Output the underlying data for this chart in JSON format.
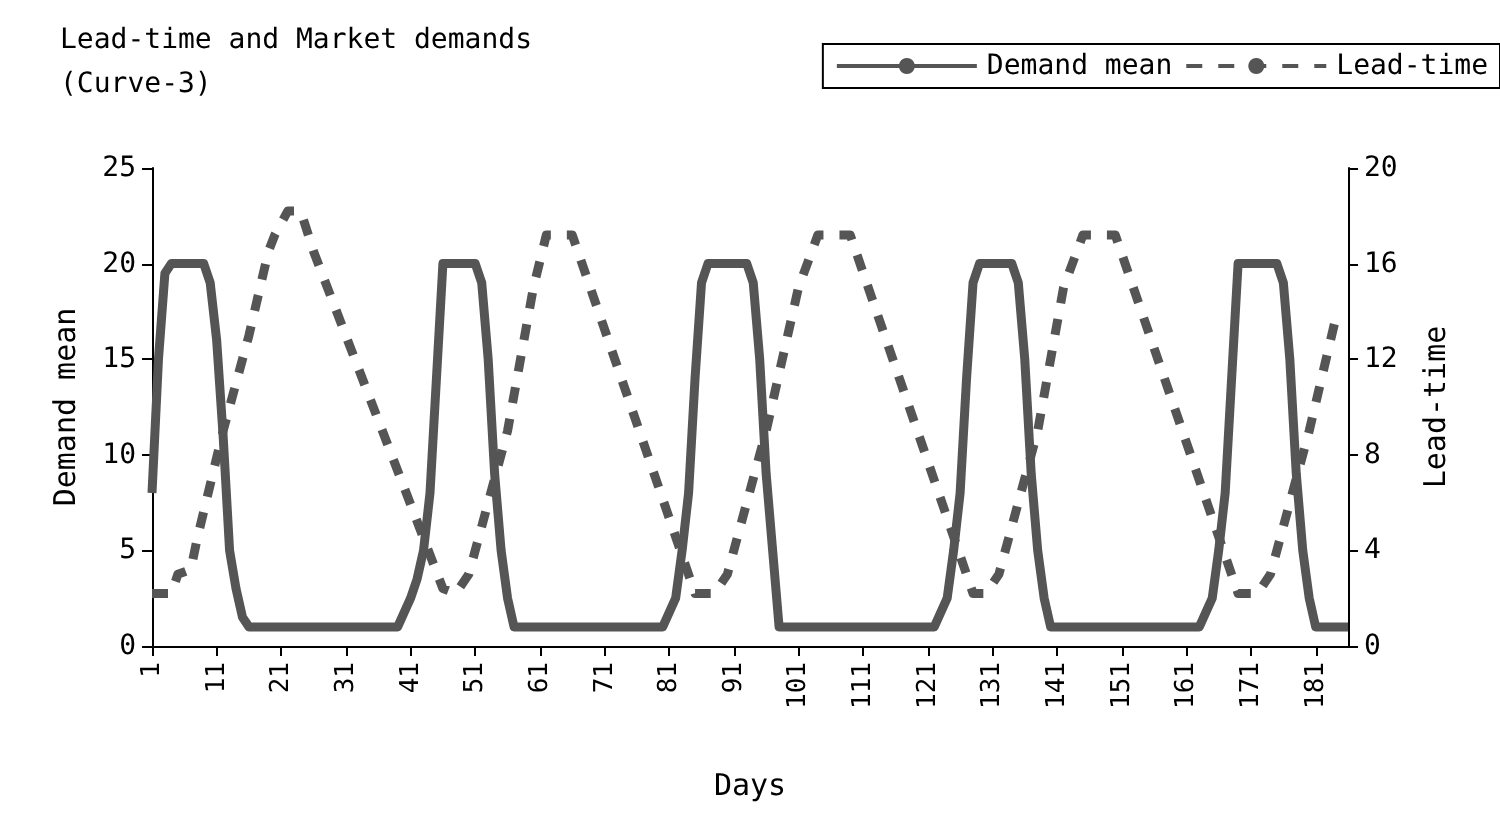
{
  "chart_data": {
    "type": "line",
    "title": "Lead-time and Market demands\n(Curve-3)",
    "xlabel": "Days",
    "ylabel": "Demand mean",
    "y2label": "Lead-time",
    "xlim": [
      1,
      186
    ],
    "xticks": [
      1,
      11,
      21,
      31,
      41,
      51,
      61,
      71,
      81,
      91,
      101,
      111,
      121,
      131,
      141,
      151,
      161,
      171,
      181
    ],
    "ylim": [
      0,
      25
    ],
    "yticks": [
      0,
      5,
      10,
      15,
      20,
      25
    ],
    "y2lim": [
      0,
      20
    ],
    "y2ticks": [
      0,
      4,
      8,
      12,
      16,
      20
    ],
    "grid": false,
    "legend": "top right",
    "marker": "none",
    "series": [
      {
        "name": "Demand mean",
        "color": "#555555",
        "line_style": "solid",
        "x": [
          1,
          2,
          3,
          4,
          9,
          10,
          11,
          12,
          13,
          14,
          15,
          16,
          39,
          41,
          42,
          43,
          44,
          45,
          46,
          51,
          52,
          53,
          54,
          55,
          56,
          57,
          80,
          82,
          83,
          84,
          85,
          86,
          87,
          93,
          94,
          95,
          96,
          97,
          98,
          122,
          124,
          125,
          126,
          127,
          128,
          129,
          134,
          135,
          136,
          137,
          138,
          139,
          140,
          163,
          165,
          166,
          167,
          168,
          169,
          175,
          176,
          177,
          178,
          179,
          180,
          181,
          186
        ],
        "values": [
          8,
          15,
          19.5,
          20,
          20,
          19,
          16,
          11,
          5,
          3,
          1.5,
          1,
          1,
          2.5,
          3.5,
          5,
          8,
          14,
          20,
          20,
          19,
          15,
          9,
          5,
          2.5,
          1,
          1,
          2.5,
          5,
          8,
          14,
          19,
          20,
          20,
          19,
          15,
          9,
          5,
          1,
          1,
          2.5,
          5,
          8,
          14,
          19,
          20,
          20,
          19,
          15,
          9,
          5,
          2.5,
          1,
          1,
          2.5,
          5,
          8,
          14,
          20,
          20,
          19,
          15,
          9,
          5,
          2.5,
          1,
          1
        ]
      },
      {
        "name": "Lead-time",
        "color": "#555555",
        "line_style": "dashed",
        "axis": "y2",
        "x": [
          1,
          4,
          5,
          7,
          8,
          12,
          16,
          19,
          20,
          22,
          24,
          26,
          46,
          48,
          50,
          56,
          60,
          62,
          66,
          85,
          88,
          90,
          96,
          101,
          104,
          109,
          128,
          130,
          132,
          138,
          142,
          145,
          150,
          169,
          172,
          174,
          180,
          184
        ],
        "values": [
          2.2,
          2.2,
          3,
          3.2,
          4.5,
          9,
          13,
          16.5,
          17.2,
          18.2,
          18.2,
          16.5,
          2.4,
          2.2,
          3,
          9,
          15,
          17.2,
          17.2,
          2.2,
          2.2,
          3,
          9,
          15,
          17.2,
          17.2,
          2.2,
          2.2,
          3,
          9,
          15,
          17.2,
          17.2,
          2.2,
          2.2,
          3,
          9,
          13.6
        ]
      }
    ]
  }
}
